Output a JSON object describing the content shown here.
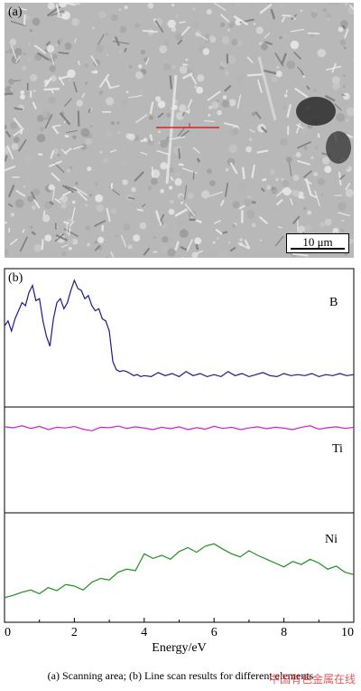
{
  "panel_a": {
    "label": "(a)",
    "scale_bar": "10 μm"
  },
  "panel_b": {
    "label": "(b)"
  },
  "caption": "(a) Scanning area; (b) Line scan results for different elements",
  "watermark": "中国有色金属在线",
  "colors": {
    "B": "#1a1a8c",
    "Ti": "#d21fd2",
    "Ni": "#1f8f1f",
    "scan_line": "#e02020"
  },
  "chart_data": {
    "type": "line",
    "xlabel": "Energy/eV",
    "xlim": [
      0,
      10
    ],
    "xticks": [
      0,
      2,
      4,
      6,
      8,
      10
    ],
    "series": [
      {
        "name": "B",
        "x": [
          0,
          0.1,
          0.2,
          0.3,
          0.4,
          0.5,
          0.6,
          0.7,
          0.8,
          0.9,
          1.0,
          1.1,
          1.2,
          1.3,
          1.4,
          1.5,
          1.6,
          1.7,
          1.8,
          1.9,
          2.0,
          2.1,
          2.2,
          2.3,
          2.4,
          2.5,
          2.6,
          2.7,
          2.8,
          2.9,
          3.0,
          3.1,
          3.2,
          3.3,
          3.4,
          3.5,
          3.6,
          3.7,
          3.8,
          3.9,
          4.0,
          4.2,
          4.4,
          4.6,
          4.8,
          5.0,
          5.2,
          5.4,
          5.6,
          5.8,
          6.0,
          6.2,
          6.4,
          6.6,
          6.8,
          7.0,
          7.2,
          7.4,
          7.6,
          7.8,
          8.0,
          8.2,
          8.4,
          8.6,
          8.8,
          9.0,
          9.2,
          9.4,
          9.6,
          9.8,
          10.0
        ],
        "y": [
          0.55,
          0.6,
          0.5,
          0.62,
          0.7,
          0.78,
          0.75,
          0.88,
          0.95,
          0.8,
          0.82,
          0.6,
          0.45,
          0.35,
          0.62,
          0.78,
          0.82,
          0.72,
          0.78,
          0.9,
          1.0,
          0.92,
          0.9,
          0.82,
          0.85,
          0.75,
          0.7,
          0.72,
          0.62,
          0.6,
          0.5,
          0.2,
          0.12,
          0.1,
          0.11,
          0.1,
          0.08,
          0.06,
          0.07,
          0.05,
          0.06,
          0.05,
          0.09,
          0.06,
          0.08,
          0.05,
          0.1,
          0.06,
          0.08,
          0.05,
          0.07,
          0.05,
          0.1,
          0.06,
          0.08,
          0.05,
          0.07,
          0.09,
          0.06,
          0.05,
          0.08,
          0.06,
          0.07,
          0.06,
          0.08,
          0.05,
          0.07,
          0.06,
          0.08,
          0.06,
          0.07
        ]
      },
      {
        "name": "Ti",
        "x": [
          0,
          0.25,
          0.5,
          0.75,
          1.0,
          1.25,
          1.5,
          1.75,
          2.0,
          2.25,
          2.5,
          2.75,
          3.0,
          3.25,
          3.5,
          3.75,
          4.0,
          4.25,
          4.5,
          4.75,
          5.0,
          5.25,
          5.5,
          5.75,
          6.0,
          6.25,
          6.5,
          6.75,
          7.0,
          7.25,
          7.5,
          7.75,
          8.0,
          8.25,
          8.5,
          8.75,
          9.0,
          9.25,
          9.5,
          9.75,
          10.0
        ],
        "y": [
          0.62,
          0.58,
          0.66,
          0.55,
          0.64,
          0.5,
          0.6,
          0.57,
          0.63,
          0.52,
          0.45,
          0.6,
          0.58,
          0.65,
          0.55,
          0.62,
          0.56,
          0.5,
          0.6,
          0.54,
          0.62,
          0.5,
          0.58,
          0.52,
          0.64,
          0.55,
          0.6,
          0.5,
          0.57,
          0.62,
          0.54,
          0.6,
          0.56,
          0.5,
          0.6,
          0.66,
          0.52,
          0.58,
          0.62,
          0.55,
          0.6
        ]
      },
      {
        "name": "Ni",
        "x": [
          0,
          0.25,
          0.5,
          0.75,
          1.0,
          1.25,
          1.5,
          1.75,
          2.0,
          2.25,
          2.5,
          2.75,
          3.0,
          3.25,
          3.5,
          3.75,
          4.0,
          4.25,
          4.5,
          4.75,
          5.0,
          5.25,
          5.5,
          5.75,
          6.0,
          6.25,
          6.5,
          6.75,
          7.0,
          7.25,
          7.5,
          7.75,
          8.0,
          8.25,
          8.5,
          8.75,
          9.0,
          9.25,
          9.5,
          9.75,
          10.0
        ],
        "y": [
          0.05,
          0.08,
          0.12,
          0.15,
          0.1,
          0.18,
          0.14,
          0.22,
          0.2,
          0.15,
          0.25,
          0.3,
          0.28,
          0.38,
          0.42,
          0.4,
          0.62,
          0.56,
          0.6,
          0.55,
          0.65,
          0.7,
          0.64,
          0.72,
          0.75,
          0.68,
          0.62,
          0.58,
          0.66,
          0.6,
          0.55,
          0.5,
          0.45,
          0.52,
          0.48,
          0.55,
          0.5,
          0.42,
          0.46,
          0.38,
          0.35
        ]
      }
    ],
    "series_labels": [
      "B",
      "Ti",
      "Ni"
    ]
  }
}
